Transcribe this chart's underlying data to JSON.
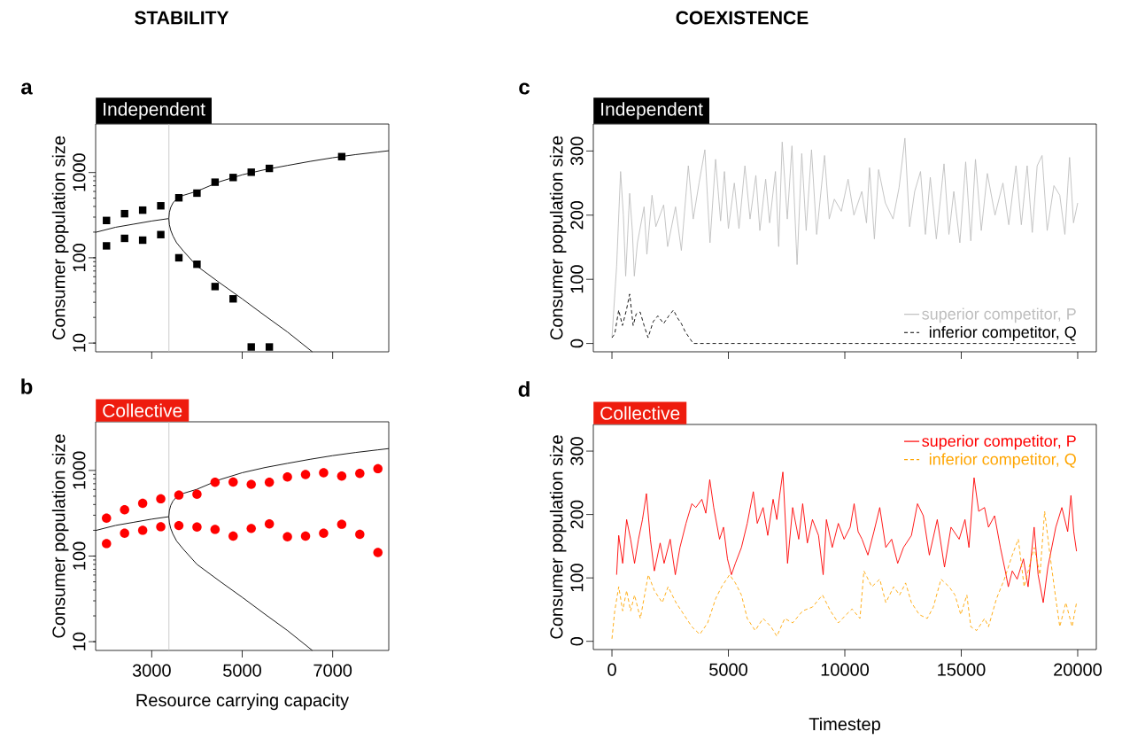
{
  "chart_data": [
    {
      "type": "scatter",
      "title": "Independent",
      "ylabel": "Consumer population size",
      "annotations": [
        "a",
        "STABILITY"
      ],
      "xlim": [
        1760,
        8240
      ],
      "ylim": [
        7.9,
        3700
      ],
      "xticks": [
        3000,
        5000,
        7000
      ],
      "yticks": [
        10,
        100,
        1000
      ],
      "log": "y",
      "tick_labels": "y",
      "ref_lines": [
        {
          "axis": "x",
          "value": 3380,
          "color": "#bebebe"
        }
      ],
      "series": [
        {
          "type": "scatter",
          "marker": "square",
          "color": "#000000",
          "x": [
            2000,
            2400,
            2800,
            3200,
            3600,
            4000,
            4400,
            4800,
            5200,
            5600,
            7200
          ],
          "values": [
            274,
            329,
            362,
            407,
            505,
            573,
            770,
            874,
            1008,
            1117,
            1535
          ]
        },
        {
          "type": "scatter",
          "marker": "square",
          "color": "#000000",
          "x": [
            2000,
            2400,
            2800,
            3200,
            3600,
            4000,
            4400,
            4800,
            5200,
            5600
          ],
          "values": [
            138,
            169,
            161,
            187,
            100,
            84,
            46,
            33,
            9,
            9
          ]
        },
        {
          "type": "line",
          "color": "#000000",
          "x": [
            1760,
            2200,
            2600,
            3000,
            3370
          ],
          "values": [
            199,
            228,
            248,
            270,
            288
          ]
        },
        {
          "type": "line",
          "color": "#000000",
          "x": [
            6550,
            6000,
            5500,
            5000,
            4500,
            4000,
            3700,
            3550,
            3470,
            3420,
            3390,
            3378,
            3390,
            3420,
            3470,
            3550,
            3700,
            4000,
            4500,
            5000,
            5500,
            6000,
            6500,
            7000,
            7500,
            8000,
            8240
          ],
          "values": [
            7.9,
            13.5,
            21,
            33,
            51,
            80,
            120,
            150,
            180,
            210,
            245,
            289,
            340,
            390,
            440,
            490,
            540,
            603,
            780,
            940,
            1080,
            1210,
            1350,
            1490,
            1620,
            1740,
            1800
          ]
        }
      ]
    },
    {
      "type": "scatter",
      "title": "Collective",
      "ylabel": "Consumer population size",
      "xlabel": "Resource carrying capacity",
      "annotations": [
        "b"
      ],
      "xlim": [
        1760,
        8240
      ],
      "ylim": [
        7.9,
        3700
      ],
      "xticks": [
        3000,
        5000,
        7000
      ],
      "yticks": [
        10,
        100,
        1000
      ],
      "log": "y",
      "ref_lines": [
        {
          "axis": "x",
          "value": 3380,
          "color": "#bebebe"
        }
      ],
      "series": [
        {
          "type": "scatter",
          "marker": "circle",
          "color": "#ff0000",
          "x": [
            2000,
            2400,
            2800,
            3200,
            3600,
            4000,
            4400,
            4800,
            5200,
            5600,
            6000,
            6400,
            6800,
            7200,
            7600,
            8000
          ],
          "values": [
            277,
            347,
            413,
            466,
            516,
            528,
            728,
            733,
            688,
            728,
            839,
            895,
            938,
            859,
            923,
            1049
          ]
        },
        {
          "type": "scatter",
          "marker": "circle",
          "color": "#ff0000",
          "x": [
            2000,
            2400,
            2800,
            3200,
            3600,
            4000,
            4400,
            4800,
            5200,
            5600,
            6000,
            6400,
            6800,
            7200,
            7600,
            8000
          ],
          "values": [
            140,
            185,
            200,
            220,
            227,
            218,
            205,
            171,
            210,
            237,
            168,
            171,
            185,
            235,
            179,
            110
          ]
        },
        {
          "type": "line",
          "color": "#000000",
          "x": [
            1760,
            2200,
            2600,
            3000,
            3370
          ],
          "values": [
            199,
            228,
            248,
            270,
            288
          ]
        },
        {
          "type": "line",
          "color": "#000000",
          "x": [
            6550,
            6000,
            5500,
            5000,
            4500,
            4000,
            3700,
            3550,
            3470,
            3420,
            3390,
            3378,
            3390,
            3420,
            3470,
            3550,
            3700,
            4000,
            4500,
            5000,
            5500,
            6000,
            6500,
            7000,
            7500,
            8000,
            8240
          ],
          "values": [
            7.9,
            13.5,
            21,
            33,
            51,
            80,
            120,
            150,
            180,
            210,
            245,
            289,
            340,
            390,
            440,
            490,
            540,
            603,
            780,
            940,
            1080,
            1210,
            1350,
            1490,
            1620,
            1740,
            1800
          ]
        }
      ]
    },
    {
      "type": "line",
      "title": "Independent",
      "ylabel": "Consumer population size",
      "annotations": [
        "c",
        "COEXISTENCE"
      ],
      "xlim": [
        -800,
        20800
      ],
      "ylim": [
        -13,
        342
      ],
      "xticks": [
        0,
        5000,
        10000,
        15000,
        20000
      ],
      "yticks": [
        0,
        100,
        200,
        300
      ],
      "tick_labels": "y",
      "legend": "bottom right",
      "series": [
        {
          "name": "superior competitor, P",
          "color": "#bebebe",
          "line_style": "solid",
          "x": [
            0,
            200,
            370,
            490,
            590,
            760,
            875,
            960,
            1095,
            1380,
            1500,
            1720,
            1885,
            2220,
            2390,
            2730,
            2980,
            3280,
            3490,
            3740,
            3990,
            4210,
            4450,
            4665,
            4830,
            5000,
            5255,
            5455,
            5710,
            5930,
            6180,
            6350,
            6600,
            6770,
            7020,
            7160,
            7310,
            7530,
            7730,
            7950,
            8150,
            8340,
            8570,
            8790,
            9130,
            9330,
            9550,
            9850,
            10140,
            10390,
            10730,
            10930,
            11060,
            11270,
            11450,
            11740,
            12070,
            12330,
            12580,
            12780,
            13000,
            13250,
            13460,
            13670,
            13930,
            14260,
            14470,
            14680,
            14940,
            15190,
            15410,
            15610,
            15860,
            16120,
            16450,
            16790,
            17040,
            17350,
            17580,
            17830,
            18050,
            18260,
            18470,
            18690,
            18980,
            19230,
            19450,
            19650,
            19820,
            20000
          ],
          "values": [
            9,
            120,
            268,
            200,
            105,
            234,
            176,
            105,
            157,
            213,
            139,
            231,
            182,
            216,
            151,
            213,
            145,
            277,
            194,
            250,
            302,
            157,
            287,
            191,
            268,
            179,
            250,
            179,
            277,
            194,
            262,
            176,
            256,
            188,
            268,
            151,
            314,
            194,
            308,
            123,
            296,
            176,
            302,
            170,
            293,
            194,
            225,
            206,
            256,
            200,
            237,
            188,
            274,
            163,
            271,
            219,
            194,
            243,
            320,
            182,
            237,
            268,
            170,
            259,
            163,
            280,
            170,
            237,
            157,
            283,
            160,
            287,
            176,
            265,
            200,
            250,
            185,
            277,
            185,
            277,
            173,
            277,
            293,
            176,
            246,
            231,
            170,
            290,
            188,
            219
          ]
        },
        {
          "name": "inferior competitor, Q",
          "color": "#000000",
          "line_style": "dashed",
          "x": [
            0,
            120,
            290,
            450,
            620,
            760,
            910,
            1040,
            1210,
            1380,
            1550,
            1770,
            1970,
            2220,
            2440,
            2640,
            2810,
            2980,
            3150,
            3320,
            3490,
            20000
          ],
          "values": [
            9,
            15,
            52,
            28,
            52,
            77,
            28,
            46,
            49,
            28,
            9,
            34,
            43,
            31,
            43,
            52,
            40,
            31,
            18,
            9,
            0,
            0
          ]
        }
      ]
    },
    {
      "type": "line",
      "title": "Collective",
      "ylabel": "Consumer population size",
      "xlabel": "Timestep",
      "annotations": [
        "d"
      ],
      "xlim": [
        -800,
        20800
      ],
      "ylim": [
        -13,
        342
      ],
      "xticks": [
        0,
        5000,
        10000,
        15000,
        20000
      ],
      "yticks": [
        0,
        100,
        200,
        300
      ],
      "legend": "top right",
      "series": [
        {
          "name": "superior competitor, P",
          "color": "#ff0000",
          "line_style": "solid",
          "x": [
            200,
            290,
            460,
            630,
            800,
            970,
            1140,
            1310,
            1480,
            1650,
            1820,
            2070,
            2240,
            2500,
            2720,
            2920,
            3180,
            3430,
            3600,
            3860,
            4030,
            4200,
            4370,
            4620,
            4790,
            4960,
            5130,
            5300,
            5560,
            5810,
            6070,
            6240,
            6490,
            6690,
            6920,
            7080,
            7200,
            7340,
            7540,
            7760,
            8020,
            8190,
            8390,
            8610,
            8870,
            9070,
            9210,
            9460,
            9720,
            9970,
            10230,
            10400,
            10570,
            10740,
            10990,
            11250,
            11500,
            11760,
            12010,
            12270,
            12520,
            12860,
            13120,
            13370,
            13630,
            13970,
            14280,
            14560,
            14910,
            15160,
            15330,
            15550,
            15750,
            16000,
            16170,
            16430,
            16680,
            16890,
            17020,
            17190,
            17400,
            17670,
            17870,
            18130,
            18300,
            18520,
            18720,
            19060,
            19320,
            19570,
            19710,
            19830,
            19950
          ],
          "values": [
            105,
            167,
            123,
            192,
            161,
            123,
            161,
            192,
            233,
            161,
            111,
            155,
            123,
            161,
            105,
            148,
            186,
            217,
            211,
            224,
            202,
            255,
            211,
            161,
            180,
            130,
            105,
            123,
            148,
            186,
            236,
            186,
            211,
            167,
            224,
            192,
            230,
            267,
            123,
            211,
            161,
            217,
            155,
            192,
            167,
            105,
            192,
            148,
            186,
            161,
            180,
            217,
            173,
            161,
            136,
            173,
            211,
            148,
            161,
            123,
            148,
            167,
            217,
            198,
            136,
            192,
            117,
            180,
            161,
            192,
            148,
            258,
            205,
            211,
            180,
            198,
            148,
            111,
            86,
            111,
            98,
            130,
            86,
            180,
            105,
            61,
            117,
            180,
            211,
            173,
            230,
            173,
            142
          ]
        },
        {
          "name": "inferior competitor, Q",
          "color": "#ffa500",
          "line_style": "dashed",
          "x": [
            0,
            120,
            290,
            460,
            630,
            800,
            970,
            1220,
            1560,
            1820,
            2160,
            2410,
            2750,
            3090,
            3430,
            3770,
            4110,
            4450,
            4710,
            5050,
            5300,
            5560,
            5810,
            6150,
            6490,
            6830,
            7080,
            7420,
            7760,
            8190,
            8610,
            9040,
            9380,
            9720,
            10060,
            10310,
            10650,
            10820,
            11160,
            11500,
            11760,
            12100,
            12350,
            12610,
            12860,
            13200,
            13540,
            13800,
            14130,
            14480,
            14730,
            14980,
            15240,
            15410,
            15660,
            16000,
            16170,
            16510,
            16850,
            17190,
            17450,
            17700,
            18130,
            18380,
            18580,
            18810,
            19060,
            19230,
            19490,
            19760,
            19950
          ],
          "values": [
            4,
            48,
            86,
            48,
            80,
            48,
            73,
            36,
            105,
            80,
            61,
            86,
            61,
            42,
            23,
            11,
            29,
            67,
            86,
            105,
            92,
            73,
            36,
            17,
            36,
            23,
            8,
            36,
            29,
            48,
            54,
            73,
            48,
            29,
            42,
            51,
            36,
            111,
            86,
            98,
            61,
            86,
            73,
            92,
            61,
            42,
            36,
            54,
            98,
            86,
            73,
            42,
            73,
            23,
            17,
            36,
            23,
            67,
            98,
            136,
            161,
            86,
            148,
            105,
            205,
            136,
            67,
            23,
            61,
            23,
            61
          ]
        }
      ]
    }
  ]
}
